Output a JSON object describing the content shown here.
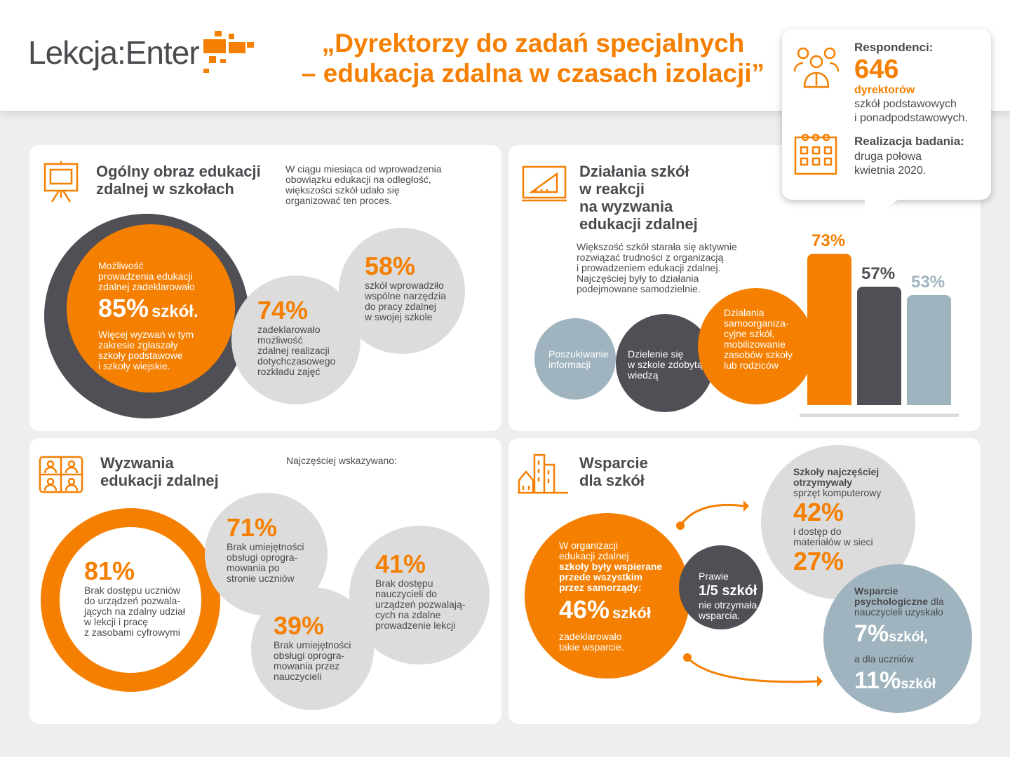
{
  "header": {
    "logo_a": "Lekcja:",
    "logo_b": "Enter",
    "title_line1": "„Dyrektorzy do zadań specjalnych",
    "title_line2": "– edukacja zdalna w czasach izolacji”"
  },
  "callout": {
    "respondents_label": "Respondenci:",
    "respondents_count": "646",
    "respondents_unit": "dyrektorów",
    "respondents_desc1": "szkół podstawowych",
    "respondents_desc2": "i ponadpodstawowych.",
    "period_label": "Realizacja badania:",
    "period_line1": "druga połowa",
    "period_line2": "kwietnia 2020."
  },
  "panel1": {
    "title1": "Ogólny obraz edukacji",
    "title2": "zdalnej w szkołach",
    "intro": [
      "W ciągu miesiąca od wprowadzenia",
      "obowiązku edukacji na odległość,",
      "większości szkół udało się",
      "organizować ten proces."
    ],
    "main": {
      "pre": [
        "Możliwość",
        "prowadzenia edukacji",
        "zdalnej zadeklarowało"
      ],
      "value": "85%",
      "unit": "szkół.",
      "post": [
        "Więcej wyzwań w tym",
        "zakresie zgłaszały",
        "szkoły podstawowe",
        "i szkoły wiejskie."
      ]
    },
    "c74": {
      "value": "74%",
      "text": [
        "zadeklarowało",
        "możliwość",
        "zdalnej realizacji",
        "dotychczasowego",
        "rozkładu zajęć"
      ]
    },
    "c58": {
      "value": "58%",
      "text": [
        "szkół wprowadziło",
        "wspólne narzędzia",
        "do pracy zdalnej",
        "w swojej szkole"
      ]
    }
  },
  "panel2": {
    "title": [
      "Działania szkół",
      "w reakcji",
      "na wyzwania",
      "edukacji zdalnej"
    ],
    "intro": [
      "Większość szkół starała się aktywnie",
      "rozwiązać trudności z organizacją",
      "i prowadzeniem edukacji zdalnej.",
      "Najczęściej były to działania",
      "podejmowane samodzielnie."
    ],
    "c1": [
      "Poszukiwanie",
      "informacji"
    ],
    "c2": [
      "Dzielenie się",
      "w szkole zdobytą",
      "wiedzą"
    ],
    "c3": [
      "Działania",
      "samoorganiza-",
      "cyjne szkół,",
      "mobilizowanie",
      "zasobów szkoły",
      "lub rodziców"
    ]
  },
  "chart_data": {
    "type": "bar",
    "categories": [
      "Poszukiwanie informacji",
      "Dzielenie się w szkole zdobytą wiedzą",
      "Działania samoorganizacyjne szkół"
    ],
    "values": [
      73,
      57,
      53
    ],
    "labels": [
      "73%",
      "57%",
      "53%"
    ],
    "colors": [
      "#f57f00",
      "#4f4f55",
      "#9fb4be"
    ],
    "ylim": [
      0,
      100
    ]
  },
  "panel3": {
    "title1": "Wyzwania",
    "title2": "edukacji zdalnej",
    "intro": "Najczęściej wskazywano:",
    "c81": {
      "value": "81%",
      "text": [
        "Brak dostępu uczniów",
        "do urządzeń pozwala-",
        "jących na zdalny udział",
        "w lekcji i pracę",
        "z zasobami cyfrowymi"
      ]
    },
    "c71": {
      "value": "71%",
      "text": [
        "Brak umiejętności",
        "obsługi oprogra-",
        "mowania po",
        "stronie uczniów"
      ]
    },
    "c41": {
      "value": "41%",
      "text": [
        "Brak dostępu",
        "nauczycieli do",
        "urządzeń pozwalają-",
        "cych na zdalne",
        "prowadzenie lekcji"
      ]
    },
    "c39": {
      "value": "39%",
      "text": [
        "Brak umiejętności",
        "obsługi oprogra-",
        "mowania przez",
        "nauczycieli"
      ]
    }
  },
  "panel4": {
    "title1": "Wsparcie",
    "title2": "dla szkół",
    "main": {
      "pre": [
        "W organizacji",
        "edukacji zdalnej"
      ],
      "bold": [
        "szkoły były wspierane",
        "przede wszystkim",
        "przez samorządy:"
      ],
      "value": "46%",
      "unit": "szkół",
      "post": [
        "zadeklarowało",
        "takie wsparcie."
      ]
    },
    "dark": {
      "pre": "Prawie",
      "value": "1/5 szkół",
      "post": [
        "nie otrzymała",
        "wsparcia."
      ]
    },
    "grey": {
      "bold": [
        "Szkoły najczęściej",
        "otrzymywały"
      ],
      "l1": "sprzęt komputerowy",
      "v1": "42%",
      "l2": [
        "i dostęp do",
        "materiałów w sieci"
      ],
      "v2": "27%"
    },
    "blue": {
      "bold1": "Wsparcie",
      "bold2": "psychologiczne",
      "rest1": " dla",
      "rest2": "nauczycieli uzyskało",
      "v1": "7%",
      "u1": "szkół,",
      "mid": "a dla uczniów",
      "v2": "11%",
      "u2": "szkół"
    }
  },
  "colors": {
    "orange": "#f57f00",
    "dark": "#4f4f55",
    "grey": "#dcdcdc",
    "blue": "#9fb4be"
  }
}
